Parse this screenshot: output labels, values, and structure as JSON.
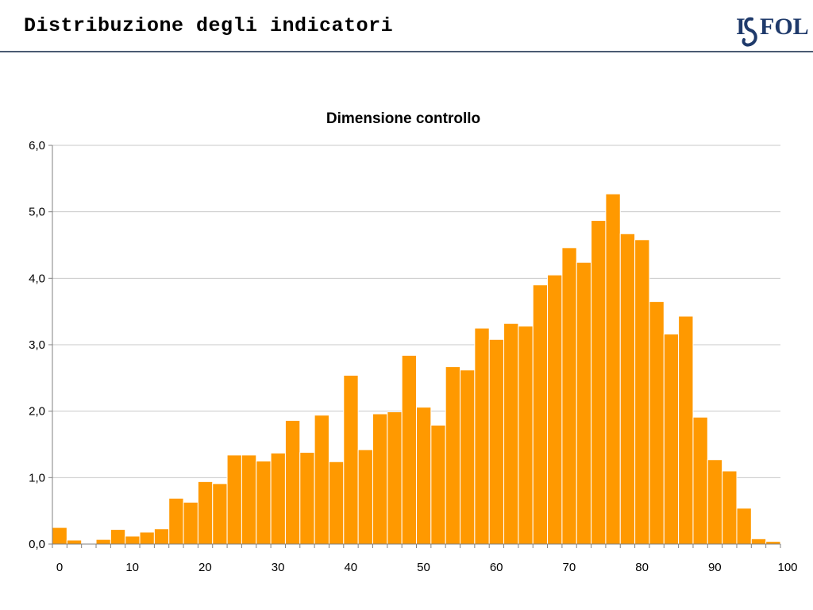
{
  "slide": {
    "title": "Distribuzione degli indicatori"
  },
  "logo": {
    "text": "ISFOL",
    "color": "#1f3a6b"
  },
  "colors": {
    "bar": "#ff9900",
    "bar_edge": "#ffffff",
    "grid": "#c8c8c8",
    "axis": "#808080",
    "header_rule": "#4a5a72"
  },
  "chart_data": {
    "type": "bar",
    "title": "Dimensione controllo",
    "xlabel": "",
    "ylabel": "",
    "xlim": [
      0,
      100
    ],
    "ylim": [
      0,
      6
    ],
    "grid": true,
    "legend": "none",
    "x_ticks": [
      "0",
      "10",
      "20",
      "30",
      "40",
      "50",
      "60",
      "70",
      "80",
      "90",
      "100"
    ],
    "y_ticks": [
      "0,0",
      "1,0",
      "2,0",
      "3,0",
      "4,0",
      "5,0",
      "6,0"
    ],
    "bin_width": 2,
    "bins_start": [
      0,
      2,
      4,
      6,
      8,
      10,
      12,
      14,
      16,
      18,
      20,
      22,
      24,
      26,
      28,
      30,
      32,
      34,
      36,
      38,
      40,
      42,
      44,
      46,
      48,
      50,
      52,
      54,
      56,
      58,
      60,
      62,
      64,
      66,
      68,
      70,
      72,
      74,
      76,
      78,
      80,
      82,
      84,
      86,
      88,
      90,
      92,
      94,
      96,
      98
    ],
    "values": [
      0.25,
      0.06,
      0.0,
      0.07,
      0.22,
      0.12,
      0.18,
      0.23,
      0.69,
      0.63,
      0.94,
      0.91,
      1.34,
      1.34,
      1.25,
      1.37,
      1.86,
      1.38,
      1.94,
      1.24,
      2.54,
      1.42,
      1.96,
      1.99,
      2.84,
      2.06,
      1.79,
      2.67,
      2.62,
      3.25,
      3.08,
      3.32,
      3.28,
      3.9,
      4.05,
      4.46,
      4.24,
      4.87,
      5.27,
      4.67,
      4.58,
      3.65,
      3.16,
      3.43,
      1.91,
      1.27,
      1.1,
      0.54,
      0.08,
      0.04
    ]
  }
}
